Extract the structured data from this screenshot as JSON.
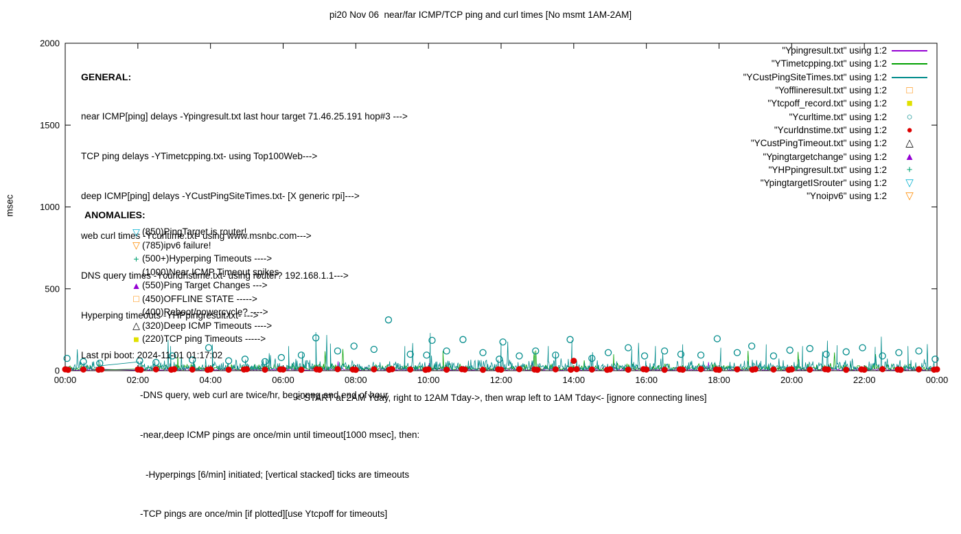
{
  "title": "pi20 Nov 06  near/far ICMP/TCP ping and curl times [No msmt 1AM-2AM]",
  "axes": {
    "ylabel": "msec",
    "xlabel": "<-START at 2AM Yday, right to 12AM Tday->, then wrap left to 1AM Tday<- [ignore connecting lines]"
  },
  "general": {
    "header": "GENERAL:",
    "lines": [
      "near ICMP[ping] delays -Ypingresult.txt last hour target 71.46.25.191 hop#3 --->",
      "TCP ping delays -YTimetcpping.txt- using Top100Web--->",
      "deep ICMP[ping] delays -YCustPingSiteTimes.txt- [X generic rpi]--->",
      "web curl times -Ycurltime.txt- using www.msnbc.com--->",
      "DNS query times -Ycurldnstime.txt- using router? 192.168.1.1--->",
      "Hyperping timeouts -YHPpingresult.txt- --->",
      "Last rpi boot: 2024-11-01 01:17:02",
      "-DNS query, web curl are twice/hr, beginnng and end of hour",
      "-near,deep ICMP pings are once/min until timeout[1000 msec], then:",
      "-Hyperpings [6/min] initiated; [vertical stacked] ticks are timeouts",
      "-TCP pings are once/min [if plotted][use Ytcpoff for timeouts]"
    ]
  },
  "anomalies_header": "ANOMALIES:",
  "anomalies": [
    {
      "marker": "triangle-down-open",
      "color": "#00b0d0",
      "text": "(850)PingTarget is router!"
    },
    {
      "marker": "triangle-down-open",
      "color": "#ff8c00",
      "text": "(785)ipv6 failure!"
    },
    {
      "marker": "plus",
      "color": "#00a070",
      "text": "(500+)Hyperping Timeouts ---->"
    },
    {
      "marker": null,
      "color": null,
      "text": "(1000)Near ICMP Timeout spikes"
    },
    {
      "marker": "triangle-filled",
      "color": "#9400d3",
      "text": "(550)Ping Target Changes --->"
    },
    {
      "marker": "square-open",
      "color": "#ff8c00",
      "text": "(450)OFFLINE STATE ----->"
    },
    {
      "marker": null,
      "color": null,
      "text": "(400)Reboot/powercycle? ---->"
    },
    {
      "marker": "triangle-open",
      "color": "#000000",
      "text": "(320)Deep ICMP Timeouts ---->"
    },
    {
      "marker": "square-filled",
      "color": "#e0e000",
      "text": "(220)TCP ping Timeouts ----->"
    }
  ],
  "legend": [
    {
      "label": "\"Ypingresult.txt\" using 1:2",
      "marker": "line",
      "color": "#9400d3"
    },
    {
      "label": "\"YTimetcpping.txt\" using 1:2",
      "marker": "line",
      "color": "#00a000"
    },
    {
      "label": "\"YCustPingSiteTimes.txt\" using 1:2",
      "marker": "line",
      "color": "#008b8b"
    },
    {
      "label": "\"Yofflineresult.txt\" using 1:2",
      "marker": "square-open",
      "color": "#ff8c00"
    },
    {
      "label": "\"Ytcpoff_record.txt\" using 1:2",
      "marker": "square-filled",
      "color": "#e0e000"
    },
    {
      "label": "\"Ycurltime.txt\" using 1:2",
      "marker": "circle-open",
      "color": "#008b8b"
    },
    {
      "label": "\"Ycurldnstime.txt\" using 1:2",
      "marker": "circle-filled",
      "color": "#dd0000"
    },
    {
      "label": "\"YCustPingTimeout.txt\" using 1:2",
      "marker": "triangle-open",
      "color": "#000000"
    },
    {
      "label": "\"Ypingtargetchange\" using 1:2",
      "marker": "triangle-filled",
      "color": "#9400d3"
    },
    {
      "label": "\"YHPpingresult.txt\" using 1:2",
      "marker": "plus",
      "color": "#00a070"
    },
    {
      "label": "\"YpingtargetISrouter\" using 1:2",
      "marker": "triangle-down-open",
      "color": "#00b0d0"
    },
    {
      "label": "\"Ynoipv6\" using 1:2",
      "marker": "triangle-down-open",
      "color": "#ff8c00"
    }
  ],
  "chart_data": {
    "type": "line",
    "title": "pi20 Nov 06  near/far ICMP/TCP ping and curl times [No msmt 1AM-2AM]",
    "xlabel": "<-START at 2AM Yday, right to 12AM Tday->, then wrap left to 1AM Tday<- [ignore connecting lines]",
    "ylabel": "msec",
    "xlim": [
      0,
      24
    ],
    "ylim": [
      0,
      2000
    ],
    "grid": false,
    "legend_position": "top-right",
    "gaps_hours": [
      [
        1,
        2
      ]
    ],
    "xticks": [
      {
        "h": 0,
        "label": "00:00"
      },
      {
        "h": 2,
        "label": "02:00"
      },
      {
        "h": 4,
        "label": "04:00"
      },
      {
        "h": 6,
        "label": "06:00"
      },
      {
        "h": 8,
        "label": "08:00"
      },
      {
        "h": 10,
        "label": "10:00"
      },
      {
        "h": 12,
        "label": "12:00"
      },
      {
        "h": 14,
        "label": "14:00"
      },
      {
        "h": 16,
        "label": "16:00"
      },
      {
        "h": 18,
        "label": "18:00"
      },
      {
        "h": 20,
        "label": "20:00"
      },
      {
        "h": 22,
        "label": "22:00"
      },
      {
        "h": 24,
        "label": "00:00"
      }
    ],
    "yticks": [
      {
        "v": 0,
        "label": "0"
      },
      {
        "v": 500,
        "label": "500"
      },
      {
        "v": 1000,
        "label": "1000"
      },
      {
        "v": 1500,
        "label": "1500"
      },
      {
        "v": 2000,
        "label": "2000"
      }
    ],
    "series": [
      {
        "name": "Ypingresult.txt",
        "style": "line",
        "color": "#9400d3",
        "seed": 101,
        "points_per_hour": 45,
        "baseline_ms": 2,
        "noise_ms": 12,
        "spike_prob": 0.004,
        "spikes": []
      },
      {
        "name": "YTimetcpping.txt",
        "style": "line",
        "color": "#00a000",
        "seed": 202,
        "points_per_hour": 45,
        "baseline_ms": 4,
        "noise_ms": 25,
        "spike_prob": 0.012,
        "spikes": [
          [
            3.1,
            110
          ],
          [
            10.4,
            120
          ],
          [
            15.1,
            100
          ]
        ]
      },
      {
        "name": "YCustPingSiteTimes.txt",
        "style": "line",
        "color": "#008b8b",
        "seed": 303,
        "points_per_hour": 60,
        "baseline_ms": 5,
        "noise_ms": 40,
        "spike_prob": 0.025,
        "spikes": [
          [
            2.9,
            150
          ],
          [
            4.05,
            160
          ],
          [
            6.15,
            150
          ],
          [
            6.9,
            235
          ],
          [
            7.3,
            165
          ],
          [
            9.35,
            150
          ],
          [
            10.05,
            230
          ],
          [
            12.0,
            170
          ],
          [
            13.3,
            150
          ],
          [
            13.95,
            185
          ],
          [
            15.6,
            130
          ],
          [
            16.25,
            150
          ],
          [
            17.0,
            160
          ],
          [
            18.05,
            140
          ],
          [
            19.3,
            160
          ],
          [
            20.3,
            150
          ],
          [
            21.25,
            155
          ],
          [
            22.3,
            145
          ],
          [
            23.2,
            150
          ]
        ]
      },
      {
        "name": "Yofflineresult.txt",
        "style": "square-open",
        "color": "#ff8c00",
        "points": []
      },
      {
        "name": "Ytcpoff_record.txt",
        "style": "square-filled",
        "color": "#e0e000",
        "points": []
      },
      {
        "name": "Ycurltime.txt",
        "style": "circle-open",
        "color": "#008b8b",
        "points": [
          [
            0.05,
            75
          ],
          [
            0.5,
            55
          ],
          [
            0.95,
            45
          ],
          [
            2.05,
            60
          ],
          [
            2.5,
            50
          ],
          [
            2.95,
            90
          ],
          [
            3.5,
            65
          ],
          [
            3.95,
            140
          ],
          [
            4.5,
            60
          ],
          [
            4.95,
            70
          ],
          [
            5.5,
            55
          ],
          [
            5.95,
            80
          ],
          [
            6.5,
            95
          ],
          [
            6.9,
            200
          ],
          [
            7.5,
            120
          ],
          [
            7.95,
            150
          ],
          [
            8.5,
            130
          ],
          [
            8.9,
            310
          ],
          [
            9.5,
            100
          ],
          [
            9.95,
            95
          ],
          [
            10.1,
            185
          ],
          [
            10.5,
            120
          ],
          [
            10.95,
            190
          ],
          [
            11.5,
            110
          ],
          [
            11.95,
            70
          ],
          [
            12.05,
            175
          ],
          [
            12.5,
            90
          ],
          [
            12.95,
            120
          ],
          [
            13.5,
            95
          ],
          [
            13.9,
            190
          ],
          [
            14.5,
            75
          ],
          [
            14.95,
            110
          ],
          [
            15.5,
            140
          ],
          [
            15.95,
            90
          ],
          [
            16.5,
            120
          ],
          [
            16.95,
            100
          ],
          [
            17.5,
            95
          ],
          [
            17.95,
            195
          ],
          [
            18.5,
            110
          ],
          [
            18.9,
            150
          ],
          [
            19.5,
            90
          ],
          [
            19.95,
            125
          ],
          [
            20.5,
            135
          ],
          [
            20.95,
            100
          ],
          [
            21.5,
            115
          ],
          [
            21.95,
            140
          ],
          [
            22.5,
            90
          ],
          [
            22.95,
            110
          ],
          [
            23.5,
            120
          ],
          [
            23.95,
            70
          ]
        ]
      },
      {
        "name": "Ycurldnstime.txt",
        "style": "circle-filled",
        "color": "#dd0000",
        "points": [
          [
            0.0,
            8
          ],
          [
            0.08,
            5
          ],
          [
            0.5,
            7
          ],
          [
            0.92,
            6
          ],
          [
            1.0,
            8
          ],
          [
            2.0,
            7
          ],
          [
            2.08,
            5
          ],
          [
            2.5,
            8
          ],
          [
            2.92,
            6
          ],
          [
            3.0,
            9
          ],
          [
            3.5,
            7
          ],
          [
            3.92,
            5
          ],
          [
            4.0,
            8
          ],
          [
            4.5,
            6
          ],
          [
            4.92,
            7
          ],
          [
            5.0,
            9
          ],
          [
            5.5,
            6
          ],
          [
            5.92,
            8
          ],
          [
            6.0,
            7
          ],
          [
            6.5,
            5
          ],
          [
            6.92,
            8
          ],
          [
            7.0,
            6
          ],
          [
            7.5,
            9
          ],
          [
            7.92,
            7
          ],
          [
            8.0,
            5
          ],
          [
            8.5,
            8
          ],
          [
            8.92,
            6
          ],
          [
            9.0,
            9
          ],
          [
            9.5,
            7
          ],
          [
            9.92,
            5
          ],
          [
            10.0,
            8
          ],
          [
            10.5,
            6
          ],
          [
            10.92,
            9
          ],
          [
            11.0,
            7
          ],
          [
            11.5,
            5
          ],
          [
            11.92,
            8
          ],
          [
            12.0,
            6
          ],
          [
            12.5,
            9
          ],
          [
            12.92,
            7
          ],
          [
            13.0,
            5
          ],
          [
            13.5,
            8
          ],
          [
            13.92,
            6
          ],
          [
            14.0,
            60
          ],
          [
            14.08,
            9
          ],
          [
            14.5,
            7
          ],
          [
            14.92,
            5
          ],
          [
            15.0,
            8
          ],
          [
            15.5,
            6
          ],
          [
            15.92,
            9
          ],
          [
            16.0,
            7
          ],
          [
            16.5,
            5
          ],
          [
            16.92,
            8
          ],
          [
            17.0,
            6
          ],
          [
            17.5,
            9
          ],
          [
            17.92,
            7
          ],
          [
            18.0,
            5
          ],
          [
            18.5,
            8
          ],
          [
            18.92,
            6
          ],
          [
            19.0,
            9
          ],
          [
            19.5,
            7
          ],
          [
            19.92,
            5
          ],
          [
            20.0,
            8
          ],
          [
            20.5,
            6
          ],
          [
            20.92,
            9
          ],
          [
            21.0,
            7
          ],
          [
            21.5,
            5
          ],
          [
            21.92,
            8
          ],
          [
            22.0,
            6
          ],
          [
            22.5,
            9
          ],
          [
            22.92,
            7
          ],
          [
            23.0,
            5
          ],
          [
            23.5,
            8
          ],
          [
            23.92,
            6
          ],
          [
            24.0,
            8
          ]
        ]
      },
      {
        "name": "YCustPingTimeout.txt",
        "style": "triangle-open",
        "color": "#000000",
        "points": []
      },
      {
        "name": "Ypingtargetchange",
        "style": "triangle-filled",
        "color": "#9400d3",
        "points": []
      },
      {
        "name": "YHPpingresult.txt",
        "style": "plus",
        "color": "#00a070",
        "points": []
      },
      {
        "name": "YpingtargetISrouter",
        "style": "triangle-down-open",
        "color": "#00b0d0",
        "points": []
      },
      {
        "name": "Ynoipv6",
        "style": "triangle-down-open",
        "color": "#ff8c00",
        "points": []
      }
    ]
  }
}
